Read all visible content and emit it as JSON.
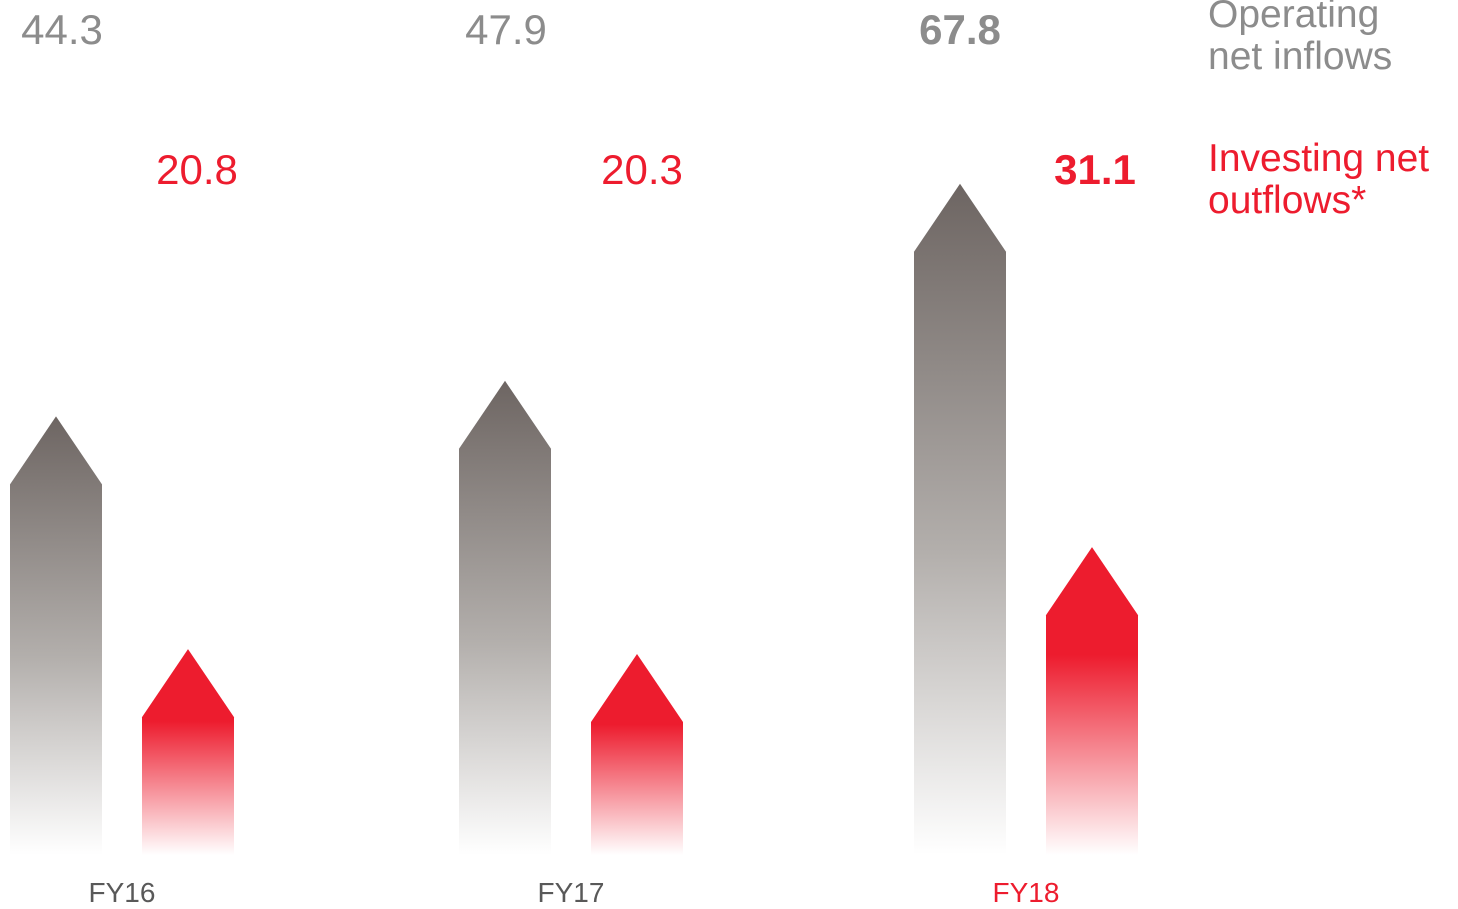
{
  "chart_data": {
    "type": "bar",
    "categories": [
      "FY16",
      "FY17",
      "FY18"
    ],
    "highlight_category": "FY18",
    "series": [
      {
        "name": "Operating net inflows",
        "values": [
          44.3,
          47.9,
          67.8
        ],
        "labels": [
          "44.3",
          "47.9",
          "67.8"
        ],
        "color": "#6d6562"
      },
      {
        "name": "Investing net outflows*",
        "values": [
          20.8,
          20.3,
          31.1
        ],
        "labels": [
          "20.8",
          "20.3",
          "31.1"
        ],
        "color": "#ed1c2e"
      }
    ],
    "legend": {
      "placement": "right",
      "entries": [
        {
          "line1": "Operating",
          "line2": "net inflows",
          "color": "#8c8c8c"
        },
        {
          "line1": "Investing net",
          "line2": "outflows*",
          "color": "#ed1c2e"
        }
      ]
    },
    "grid": false,
    "axes_visible": false,
    "colors": {
      "operating_label": "#8c8c8c",
      "investing_label": "#ed1c2e",
      "category_label": "#595959",
      "highlight_category_label": "#ed1c2e"
    }
  }
}
